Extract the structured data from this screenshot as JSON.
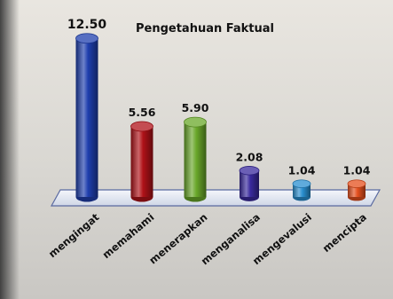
{
  "chart_data": {
    "type": "bar",
    "title": "Pengetahuan Faktual",
    "categories": [
      "mengingat",
      "memahami",
      "menerapkan",
      "menganalisa",
      "mengevalusi",
      "mencipta"
    ],
    "values": [
      12.5,
      5.56,
      5.9,
      2.08,
      1.04,
      1.04
    ],
    "value_labels": [
      "12.50",
      "5.56",
      "5.90",
      "2.08",
      "1.04",
      "1.04"
    ],
    "colors": [
      "#1f3fae",
      "#b01218",
      "#6aa82a",
      "#3a2a9e",
      "#2a8fd0",
      "#e5501e"
    ],
    "ylim": [
      0,
      14
    ],
    "xlabel": "",
    "ylabel": "",
    "grid": false,
    "legend": "none"
  }
}
